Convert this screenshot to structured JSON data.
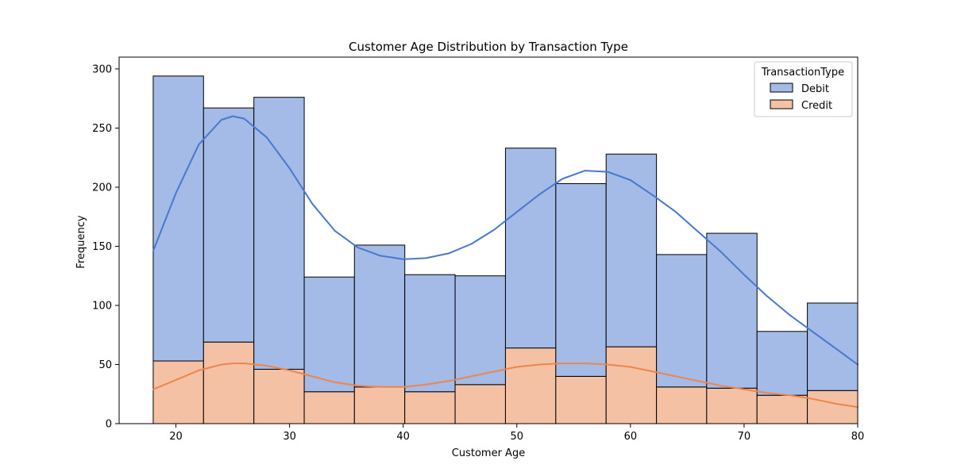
{
  "chart_data": {
    "type": "bar",
    "stacked": true,
    "title": "Customer Age Distribution by Transaction Type",
    "xlabel": "Customer Age",
    "ylabel": "Frequency",
    "xlim": [
      15,
      80
    ],
    "ylim": [
      0,
      310
    ],
    "x_ticks": [
      20,
      30,
      40,
      50,
      60,
      70,
      80
    ],
    "y_ticks": [
      0,
      50,
      100,
      150,
      200,
      250,
      300
    ],
    "bin_edges": [
      18,
      22.43,
      26.86,
      31.29,
      35.71,
      40.14,
      44.57,
      49.0,
      53.43,
      57.86,
      62.29,
      66.71,
      71.14,
      75.57,
      80
    ],
    "legend": {
      "title": "TransactionType",
      "position": "top-right"
    },
    "series": [
      {
        "name": "Debit",
        "color": "#a3bbe6",
        "edge": "#000000",
        "values": [
          241,
          198,
          230,
          97,
          120,
          99,
          92,
          169,
          163,
          163,
          112,
          131,
          54,
          74
        ]
      },
      {
        "name": "Credit",
        "color": "#f5c1a5",
        "edge": "#000000",
        "values": [
          53,
          69,
          46,
          27,
          31,
          27,
          33,
          64,
          40,
          65,
          31,
          30,
          24,
          28
        ]
      }
    ],
    "kde": [
      {
        "name": "Debit",
        "color": "#4878cf",
        "x": [
          18,
          20,
          22,
          24,
          25,
          26,
          28,
          30,
          32,
          34,
          36,
          38,
          40,
          42,
          44,
          46,
          48,
          50,
          52,
          54,
          56,
          58,
          60,
          62,
          64,
          66,
          68,
          70,
          72,
          74,
          76,
          78,
          80
        ],
        "y": [
          146,
          195,
          236,
          257,
          260,
          258,
          242,
          216,
          186,
          163,
          149,
          142,
          139,
          140,
          144,
          152,
          164,
          179,
          194,
          207,
          214,
          213,
          206,
          193,
          179,
          162,
          145,
          126,
          108,
          92,
          78,
          64,
          50
        ]
      },
      {
        "name": "Credit",
        "color": "#ee854a",
        "x": [
          18,
          20,
          22,
          24,
          25,
          26,
          28,
          30,
          32,
          34,
          36,
          38,
          40,
          42,
          44,
          46,
          48,
          50,
          52,
          54,
          56,
          58,
          60,
          62,
          64,
          66,
          68,
          70,
          72,
          74,
          76,
          78,
          80
        ],
        "y": [
          29,
          37,
          45,
          50,
          51,
          51,
          49,
          45,
          40,
          35,
          32,
          31,
          31,
          33,
          36,
          40,
          44,
          48,
          50,
          51,
          51,
          50,
          48,
          44,
          40,
          36,
          32,
          29,
          26,
          24,
          21,
          17,
          14
        ]
      }
    ]
  }
}
